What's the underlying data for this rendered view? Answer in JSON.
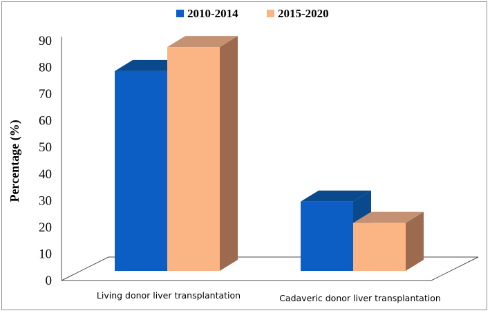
{
  "chart_data": {
    "type": "bar",
    "style": "3d-clustered-column",
    "title": "",
    "xlabel": "",
    "ylabel": "Percentage (%)",
    "ylim": [
      0,
      90
    ],
    "yticks": [
      "0",
      "10",
      "20",
      "30",
      "40",
      "50",
      "60",
      "70",
      "80",
      "90"
    ],
    "categories": [
      "Living donor liver transplantation",
      "Cadaveric donor liver transplantation"
    ],
    "series": [
      {
        "name": "2010-2014",
        "values": [
          75,
          26
        ],
        "color": "#0c5ec4",
        "top_color": "#0a4a8c"
      },
      {
        "name": "2015-2020",
        "values": [
          84,
          18
        ],
        "color": "#fbb584",
        "side_color": "#9c6a4e",
        "top_color": "#c49272"
      }
    ],
    "legend": "top-center",
    "grid": false
  }
}
